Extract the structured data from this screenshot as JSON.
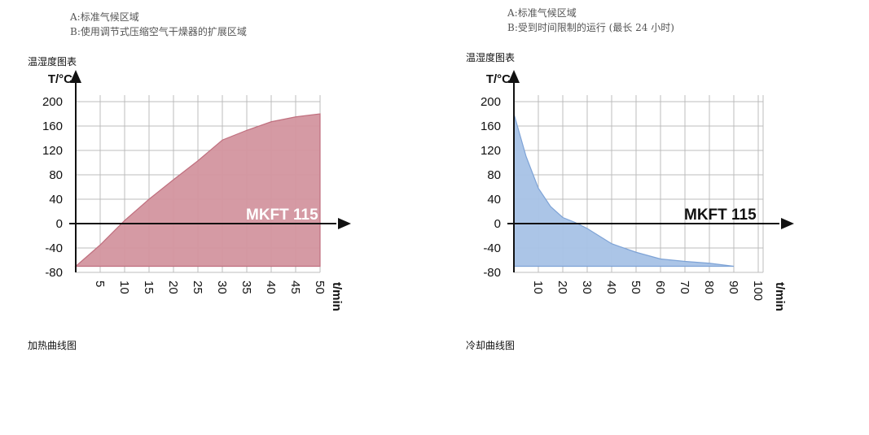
{
  "charts": [
    {
      "legend": [
        "A:标准气候区域",
        "B:使用调节式压缩空气干燥器的扩展区域"
      ],
      "section_title": "温湿度图表",
      "caption": "加热曲线图",
      "model_label": "MKFT 115",
      "model_label_color": "#ffffff",
      "fill_color": "#d3959f",
      "fill_stroke": "#c0707f",
      "chart_data": {
        "type": "area",
        "ylabel": "T/°C",
        "xlabel": "t/min",
        "xlim": [
          0,
          50
        ],
        "ylim": [
          -80,
          200
        ],
        "x_ticks": [
          5,
          10,
          15,
          20,
          25,
          30,
          35,
          40,
          45,
          50
        ],
        "y_ticks": [
          200,
          160,
          120,
          80,
          40,
          0,
          -40,
          -80
        ],
        "grid": true,
        "baseline": -70,
        "series": [
          {
            "x": [
              0,
              5,
              10,
              15,
              20,
              25,
              30,
              35,
              40,
              45,
              50
            ],
            "y": [
              -70,
              -35,
              5,
              40,
              72,
              103,
              137,
              153,
              167,
              175,
              180
            ]
          }
        ]
      }
    },
    {
      "legend": [
        "A:标准气候区域",
        "B:受到时间限制的运行 (最长 24 小时)"
      ],
      "section_title": "温湿度图表",
      "caption": "冷却曲线图",
      "model_label": "MKFT 115",
      "model_label_color": "#111111",
      "fill_color": "#a7c2e6",
      "fill_stroke": "#7ea3d6",
      "chart_data": {
        "type": "area",
        "ylabel": "T/°C",
        "xlabel": "t/min",
        "xlim": [
          0,
          100
        ],
        "ylim": [
          -80,
          200
        ],
        "x_ticks": [
          10,
          20,
          30,
          40,
          50,
          60,
          70,
          80,
          90,
          100
        ],
        "y_ticks": [
          200,
          160,
          120,
          80,
          40,
          0,
          -40,
          -80
        ],
        "grid": true,
        "baseline": -70,
        "series": [
          {
            "x": [
              0,
              5,
              10,
              15,
              20,
              25,
              30,
              40,
              50,
              60,
              70,
              80,
              90
            ],
            "y": [
              180,
              110,
              58,
              28,
              10,
              2,
              -8,
              -33,
              -47,
              -58,
              -62,
              -65,
              -70
            ]
          }
        ]
      }
    }
  ]
}
